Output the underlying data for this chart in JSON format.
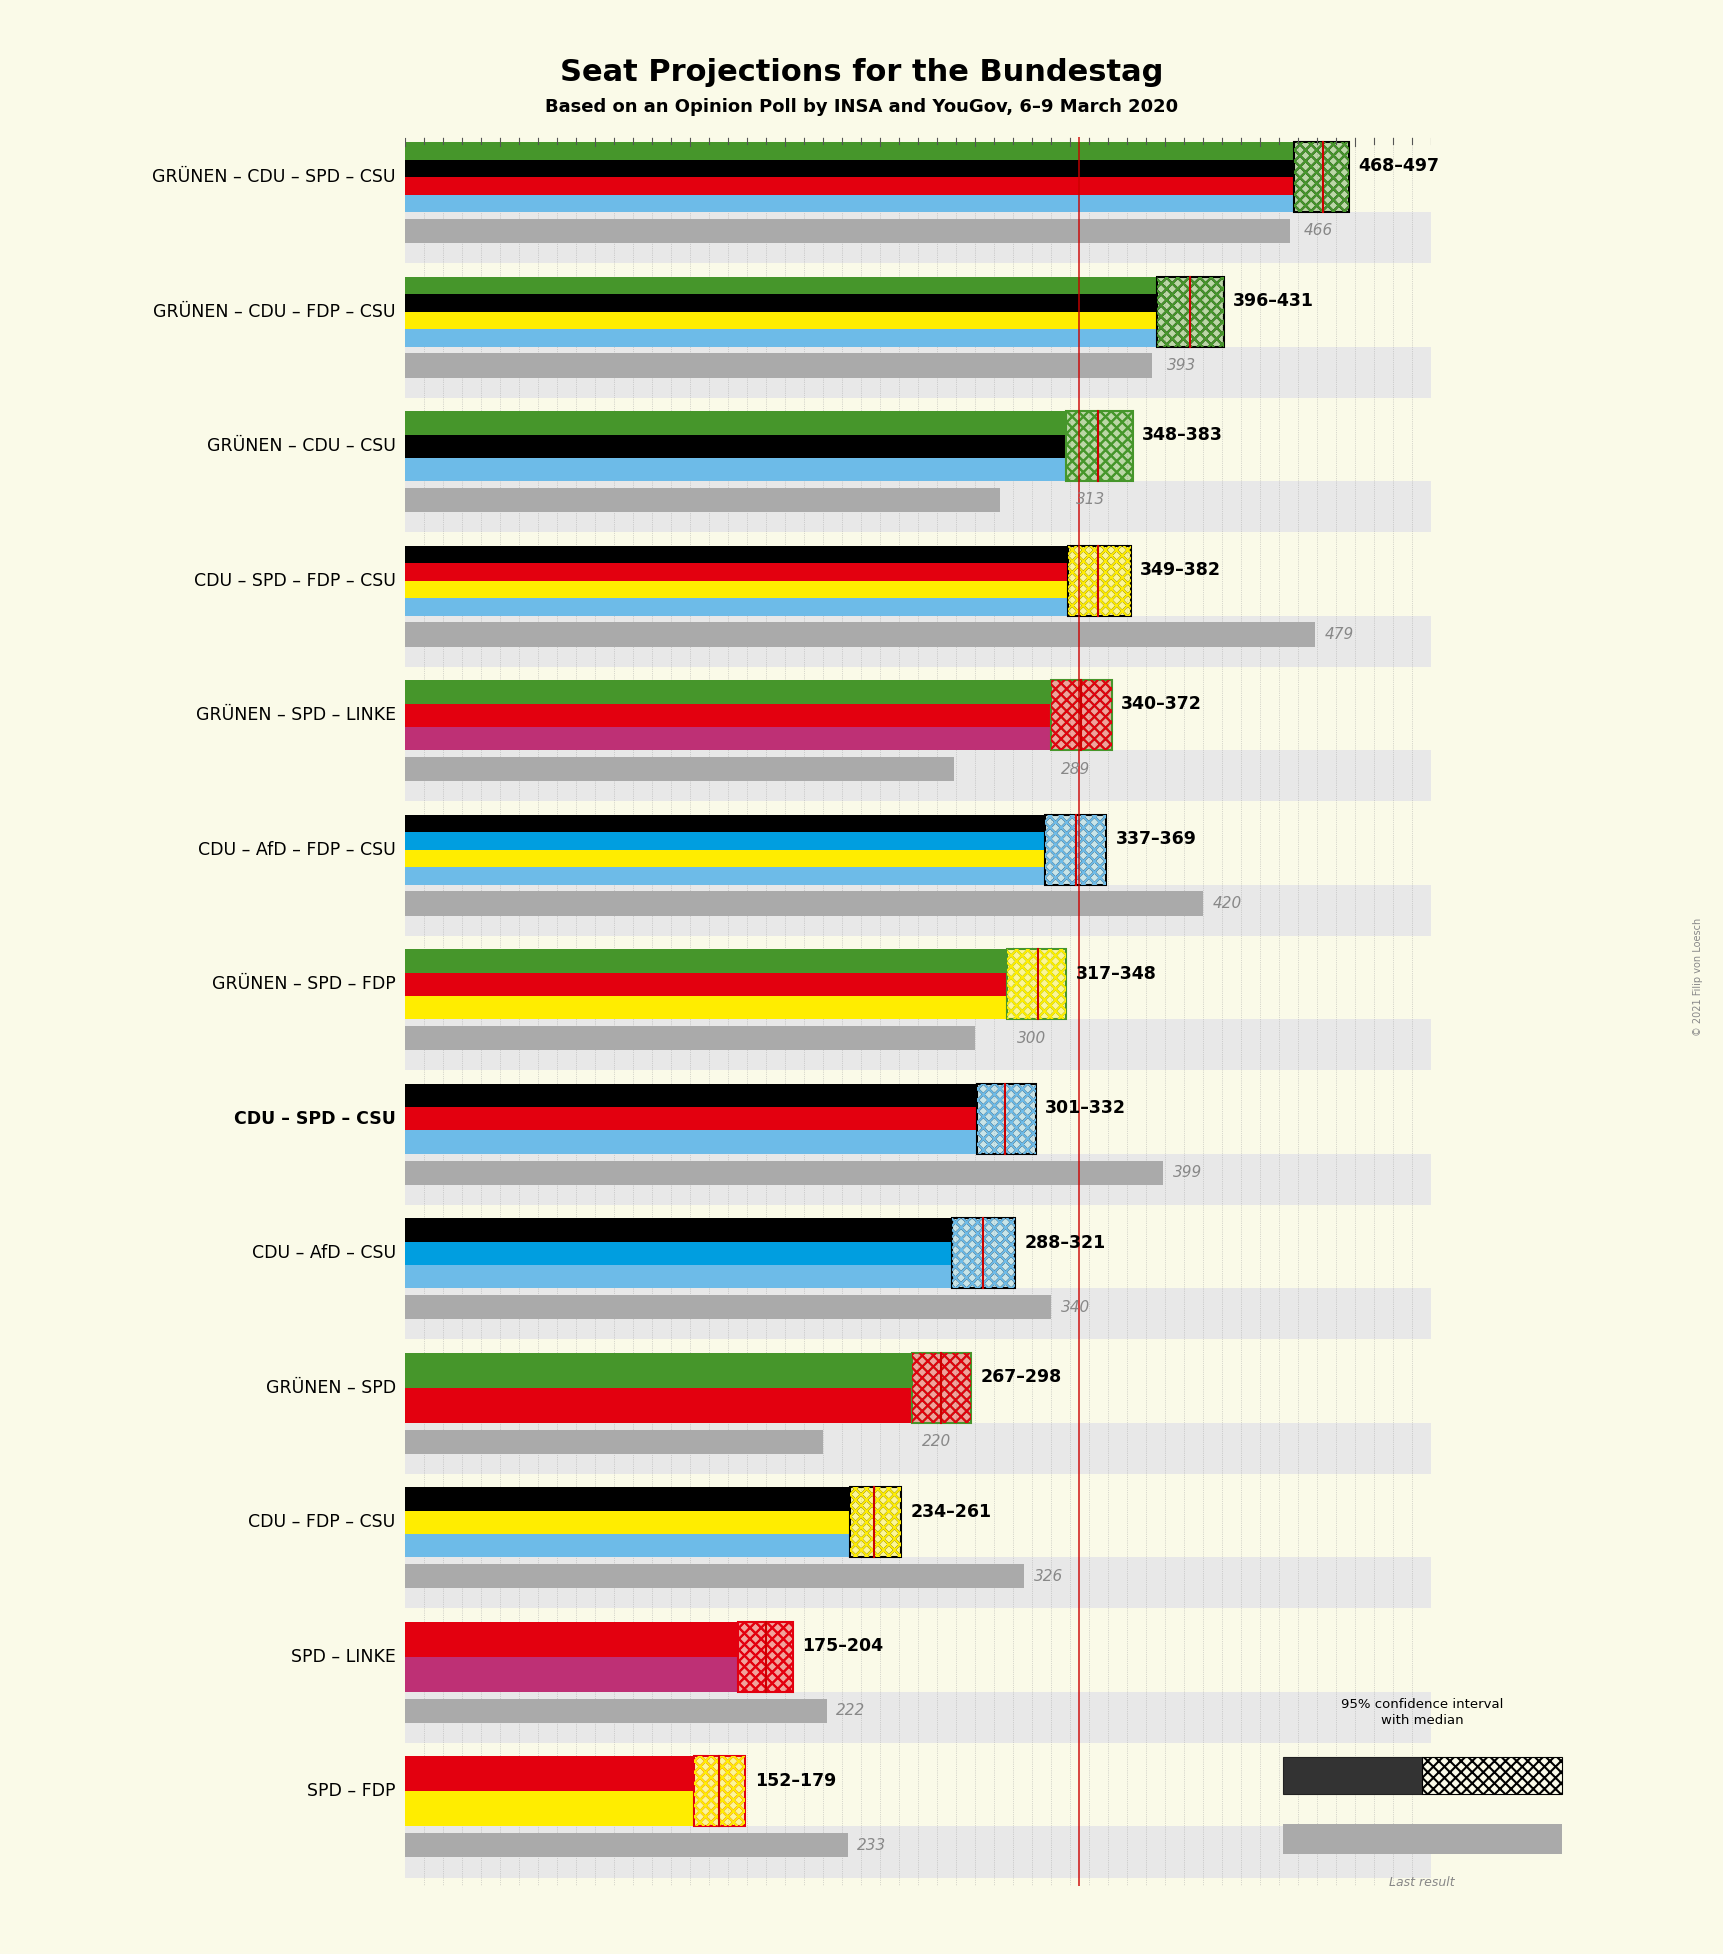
{
  "title": "Seat Projections for the Bundestag",
  "subtitle": "Based on an Opinion Poll by INSA and YouGov, 6–9 March 2020",
  "background_color": "#FAFAE8",
  "majority_line": 355,
  "xlim": [
    0,
    540
  ],
  "coalitions": [
    {
      "label": "GRÜNEN – CDU – SPD – CSU",
      "bold": false,
      "underline": false,
      "colors": [
        "#46962b",
        "#000000",
        "#e3000f",
        "#6dbbe8"
      ],
      "seats_low": 468,
      "seats_high": 497,
      "seats_median": 483,
      "last_result": 466,
      "ci_border_color": "#000000",
      "ci_hatch_color": "#46962b"
    },
    {
      "label": "GRÜNEN – CDU – FDP – CSU",
      "bold": false,
      "underline": false,
      "colors": [
        "#46962b",
        "#000000",
        "#ffed00",
        "#6dbbe8"
      ],
      "seats_low": 396,
      "seats_high": 431,
      "seats_median": 413,
      "last_result": 393,
      "ci_border_color": "#000000",
      "ci_hatch_color": "#46962b"
    },
    {
      "label": "GRÜNEN – CDU – CSU",
      "bold": false,
      "underline": false,
      "colors": [
        "#46962b",
        "#000000",
        "#6dbbe8"
      ],
      "seats_low": 348,
      "seats_high": 383,
      "seats_median": 365,
      "last_result": 313,
      "ci_border_color": "#46962b",
      "ci_hatch_color": "#46962b"
    },
    {
      "label": "CDU – SPD – FDP – CSU",
      "bold": false,
      "underline": false,
      "colors": [
        "#000000",
        "#e3000f",
        "#ffed00",
        "#6dbbe8"
      ],
      "seats_low": 349,
      "seats_high": 382,
      "seats_median": 365,
      "last_result": 479,
      "ci_border_color": "#000000",
      "ci_hatch_color": "#ffed00"
    },
    {
      "label": "GRÜNEN – SPD – LINKE",
      "bold": false,
      "underline": false,
      "colors": [
        "#46962b",
        "#e3000f",
        "#be3075"
      ],
      "seats_low": 340,
      "seats_high": 372,
      "seats_median": 356,
      "last_result": 289,
      "ci_border_color": "#46962b",
      "ci_hatch_color": "#e3000f"
    },
    {
      "label": "CDU – AfD – FDP – CSU",
      "bold": false,
      "underline": false,
      "colors": [
        "#000000",
        "#009ee0",
        "#ffed00",
        "#6dbbe8"
      ],
      "seats_low": 337,
      "seats_high": 369,
      "seats_median": 353,
      "last_result": 420,
      "ci_border_color": "#000000",
      "ci_hatch_color": "#6dbbe8"
    },
    {
      "label": "GRÜNEN – SPD – FDP",
      "bold": false,
      "underline": false,
      "colors": [
        "#46962b",
        "#e3000f",
        "#ffed00"
      ],
      "seats_low": 317,
      "seats_high": 348,
      "seats_median": 333,
      "last_result": 300,
      "ci_border_color": "#46962b",
      "ci_hatch_color": "#ffed00"
    },
    {
      "label": "CDU – SPD – CSU",
      "bold": true,
      "underline": true,
      "colors": [
        "#000000",
        "#e3000f",
        "#6dbbe8"
      ],
      "seats_low": 301,
      "seats_high": 332,
      "seats_median": 316,
      "last_result": 399,
      "ci_border_color": "#000000",
      "ci_hatch_color": "#6dbbe8"
    },
    {
      "label": "CDU – AfD – CSU",
      "bold": false,
      "underline": false,
      "colors": [
        "#000000",
        "#009ee0",
        "#6dbbe8"
      ],
      "seats_low": 288,
      "seats_high": 321,
      "seats_median": 304,
      "last_result": 340,
      "ci_border_color": "#000000",
      "ci_hatch_color": "#6dbbe8"
    },
    {
      "label": "GRÜNEN – SPD",
      "bold": false,
      "underline": false,
      "colors": [
        "#46962b",
        "#e3000f"
      ],
      "seats_low": 267,
      "seats_high": 298,
      "seats_median": 282,
      "last_result": 220,
      "ci_border_color": "#46962b",
      "ci_hatch_color": "#e3000f"
    },
    {
      "label": "CDU – FDP – CSU",
      "bold": false,
      "underline": false,
      "colors": [
        "#000000",
        "#ffed00",
        "#6dbbe8"
      ],
      "seats_low": 234,
      "seats_high": 261,
      "seats_median": 247,
      "last_result": 326,
      "ci_border_color": "#000000",
      "ci_hatch_color": "#ffed00"
    },
    {
      "label": "SPD – LINKE",
      "bold": false,
      "underline": false,
      "colors": [
        "#e3000f",
        "#be3075"
      ],
      "seats_low": 175,
      "seats_high": 204,
      "seats_median": 190,
      "last_result": 222,
      "ci_border_color": "#e3000f",
      "ci_hatch_color": "#e3000f"
    },
    {
      "label": "SPD – FDP",
      "bold": false,
      "underline": false,
      "colors": [
        "#e3000f",
        "#ffed00"
      ],
      "seats_low": 152,
      "seats_high": 179,
      "seats_median": 165,
      "last_result": 233,
      "ci_border_color": "#e3000f",
      "ci_hatch_color": "#ffed00"
    }
  ]
}
